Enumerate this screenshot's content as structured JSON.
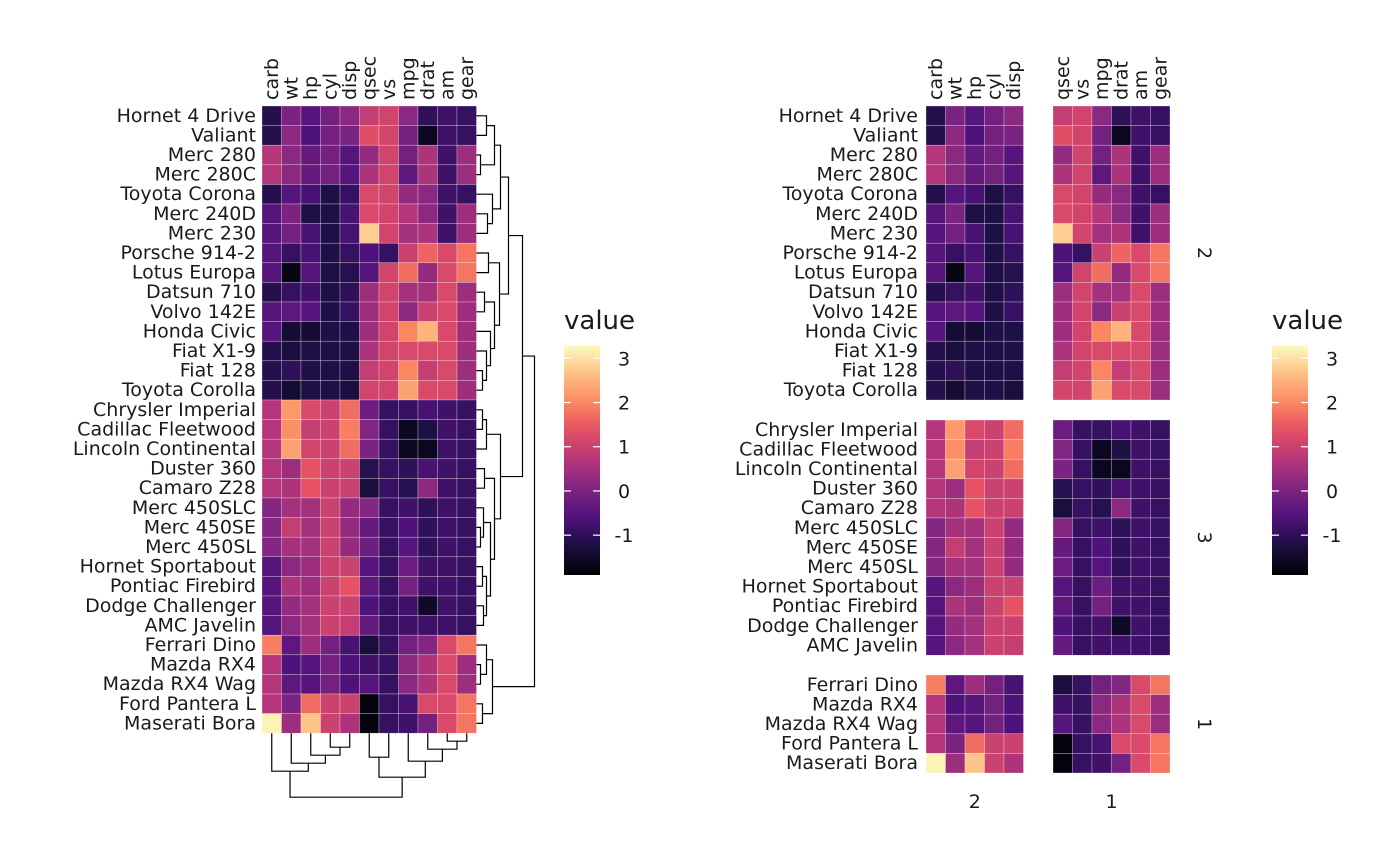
{
  "chart_data": [
    {
      "type": "heatmap",
      "title": "",
      "xlabel": "",
      "ylabel": "",
      "columns": [
        "carb",
        "wt",
        "hp",
        "cyl",
        "disp",
        "qsec",
        "vs",
        "mpg",
        "drat",
        "am",
        "gear"
      ],
      "rows": [
        "Hornet 4 Drive",
        "Valiant",
        "Merc 280",
        "Merc 280C",
        "Toyota Corona",
        "Merc 240D",
        "Merc 230",
        "Porsche 914-2",
        "Lotus Europa",
        "Datsun 710",
        "Volvo 142E",
        "Honda Civic",
        "Fiat X1-9",
        "Fiat 128",
        "Toyota Corolla",
        "Chrysler Imperial",
        "Cadillac Fleetwood",
        "Lincoln Continental",
        "Duster 360",
        "Camaro Z28",
        "Merc 450SLC",
        "Merc 450SE",
        "Merc 450SL",
        "Hornet Sportabout",
        "Pontiac Firebird",
        "Dodge Challenger",
        "AMC Javelin",
        "Ferrari Dino",
        "Mazda RX4",
        "Mazda RX4 Wag",
        "Ford Pantera L",
        "Maserati Bora"
      ],
      "dendrograms": [
        "rows",
        "columns"
      ],
      "legend": {
        "title": "value",
        "ticks": [
          3,
          2,
          1,
          0,
          -1
        ],
        "range": [
          -1.9,
          3.3
        ],
        "position": "right"
      }
    },
    {
      "type": "heatmap",
      "title": "",
      "column_groups": [
        {
          "label": "2",
          "columns": [
            "carb",
            "wt",
            "hp",
            "cyl",
            "disp"
          ]
        },
        {
          "label": "1",
          "columns": [
            "qsec",
            "vs",
            "mpg",
            "drat",
            "am",
            "gear"
          ]
        }
      ],
      "row_groups": [
        {
          "label": "2",
          "rows": [
            "Hornet 4 Drive",
            "Valiant",
            "Merc 280",
            "Merc 280C",
            "Toyota Corona",
            "Merc 240D",
            "Merc 230",
            "Porsche 914-2",
            "Lotus Europa",
            "Datsun 710",
            "Volvo 142E",
            "Honda Civic",
            "Fiat X1-9",
            "Fiat 128",
            "Toyota Corolla"
          ]
        },
        {
          "label": "3",
          "rows": [
            "Chrysler Imperial",
            "Cadillac Fleetwood",
            "Lincoln Continental",
            "Duster 360",
            "Camaro Z28",
            "Merc 450SLC",
            "Merc 450SE",
            "Merc 450SL",
            "Hornet Sportabout",
            "Pontiac Firebird",
            "Dodge Challenger",
            "AMC Javelin"
          ]
        },
        {
          "label": "1",
          "rows": [
            "Ferrari Dino",
            "Mazda RX4",
            "Mazda RX4 Wag",
            "Ford Pantera L",
            "Maserati Bora"
          ]
        }
      ],
      "legend": {
        "title": "value",
        "ticks": [
          3,
          2,
          1,
          0,
          -1
        ],
        "range": [
          -1.9,
          3.3
        ],
        "position": "right"
      }
    }
  ],
  "values": {
    "Hornet 4 Drive": [
      -1.12,
      -0.0,
      -0.5,
      -0.1,
      0.2,
      0.9,
      1.1,
      0.2,
      -1.0,
      -0.8,
      -0.9
    ],
    "Valiant": [
      -1.12,
      0.2,
      -0.6,
      -0.1,
      0.0,
      1.3,
      1.1,
      -0.1,
      -1.6,
      -0.8,
      -0.9
    ],
    "Merc 280": [
      0.7,
      0.2,
      -0.3,
      -0.1,
      -0.5,
      0.3,
      1.1,
      -0.1,
      0.6,
      -0.8,
      0.4
    ],
    "Merc 280C": [
      0.7,
      0.2,
      -0.3,
      -0.1,
      -0.5,
      0.6,
      1.1,
      -0.4,
      0.6,
      -0.8,
      0.4
    ],
    "Toyota Corona": [
      -1.12,
      -0.5,
      -0.7,
      -1.2,
      -0.9,
      1.2,
      1.1,
      0.3,
      0.2,
      -0.8,
      -0.9
    ],
    "Merc 240D": [
      -0.5,
      -0.0,
      -1.2,
      -1.2,
      -0.7,
      1.2,
      1.1,
      0.7,
      0.2,
      -0.8,
      0.4
    ],
    "Merc 230": [
      -0.5,
      -0.1,
      -0.7,
      -1.2,
      -0.7,
      2.8,
      1.1,
      0.5,
      0.6,
      -0.8,
      0.4
    ],
    "Porsche 914-2": [
      -0.5,
      -0.9,
      -0.7,
      -1.2,
      -0.9,
      -0.6,
      -0.9,
      1.0,
      1.6,
      1.2,
      1.8
    ],
    "Lotus Europa": [
      -0.5,
      -1.7,
      -0.5,
      -1.2,
      -1.1,
      -0.5,
      1.1,
      1.7,
      0.3,
      1.2,
      1.8
    ],
    "Datsun 710": [
      -1.12,
      -0.9,
      -0.8,
      -1.2,
      -1.0,
      0.4,
      1.1,
      0.5,
      0.5,
      1.2,
      0.4
    ],
    "Volvo 142E": [
      -0.5,
      -0.4,
      -0.5,
      -1.2,
      -0.9,
      0.4,
      1.1,
      0.2,
      1.0,
      1.2,
      0.4
    ],
    "Honda Civic": [
      -0.5,
      -1.4,
      -1.4,
      -1.2,
      -1.2,
      0.4,
      1.1,
      2.0,
      2.5,
      1.2,
      0.4
    ],
    "Fiat X1-9": [
      -1.12,
      -1.3,
      -1.2,
      -1.2,
      -1.2,
      0.6,
      1.1,
      1.2,
      1.2,
      1.2,
      0.4
    ],
    "Fiat 128": [
      -1.12,
      -1.0,
      -1.2,
      -1.2,
      -1.2,
      0.9,
      1.1,
      2.0,
      0.9,
      1.2,
      0.4
    ],
    "Toyota Corolla": [
      -1.12,
      -1.4,
      -1.2,
      -1.2,
      -1.3,
      1.1,
      1.1,
      2.3,
      1.2,
      1.2,
      0.4
    ],
    "Chrysler Imperial": [
      0.7,
      2.2,
      1.2,
      1.0,
      1.7,
      -0.2,
      -0.9,
      -0.9,
      -0.7,
      -0.8,
      -0.9
    ],
    "Cadillac Fleetwood": [
      0.7,
      2.1,
      0.9,
      1.0,
      1.9,
      0.1,
      -0.9,
      -1.6,
      -1.2,
      -0.8,
      -0.9
    ],
    "Lincoln Continental": [
      0.7,
      2.3,
      1.1,
      1.0,
      1.7,
      -0.0,
      -0.9,
      -1.6,
      -1.6,
      -0.8,
      -0.9
    ],
    "Duster 360": [
      0.7,
      0.4,
      1.4,
      1.0,
      1.0,
      -1.1,
      -0.9,
      -1.0,
      -0.7,
      -0.8,
      -0.9
    ],
    "Camaro Z28": [
      0.7,
      0.6,
      1.4,
      1.0,
      1.0,
      -1.3,
      -0.9,
      -1.1,
      0.2,
      -0.8,
      -0.9
    ],
    "Merc 450SLC": [
      0.1,
      0.5,
      0.5,
      1.0,
      0.3,
      0.1,
      -0.9,
      -0.8,
      -1.0,
      -0.8,
      -0.9
    ],
    "Merc 450SE": [
      0.1,
      0.9,
      0.5,
      1.0,
      0.3,
      -0.3,
      -0.9,
      -0.6,
      -1.0,
      -0.8,
      -0.9
    ],
    "Merc 450SL": [
      0.1,
      0.5,
      0.5,
      1.0,
      0.3,
      -0.2,
      -0.9,
      -0.5,
      -1.0,
      -0.8,
      -0.9
    ],
    "Hornet Sportabout": [
      -0.5,
      0.2,
      0.4,
      1.0,
      1.0,
      -0.5,
      -0.9,
      -0.2,
      -0.8,
      -0.8,
      -0.9
    ],
    "Pontiac Firebird": [
      -0.5,
      0.6,
      0.4,
      1.0,
      1.4,
      -0.4,
      -0.9,
      -0.1,
      -0.8,
      -0.8,
      -0.9
    ],
    "Dodge Challenger": [
      -0.5,
      0.3,
      0.5,
      1.0,
      1.0,
      -0.6,
      -0.9,
      -0.8,
      -1.5,
      -0.8,
      -0.9
    ],
    "AMC Javelin": [
      -0.5,
      0.2,
      0.5,
      1.0,
      0.9,
      -0.3,
      -0.9,
      -0.8,
      -0.8,
      -0.8,
      -0.9
    ],
    "Ferrari Dino": [
      1.9,
      -0.4,
      0.4,
      -0.1,
      -0.7,
      -1.3,
      -0.9,
      -0.1,
      0.1,
      1.2,
      1.8
    ],
    "Mazda RX4": [
      0.7,
      -0.6,
      -0.5,
      -0.1,
      -0.6,
      -0.8,
      -0.9,
      0.2,
      0.6,
      1.2,
      0.4
    ],
    "Mazda RX4 Wag": [
      0.7,
      -0.4,
      -0.5,
      -0.1,
      -0.6,
      -0.5,
      -0.9,
      0.2,
      0.6,
      1.2,
      0.4
    ],
    "Ford Pantera L": [
      0.7,
      -0.0,
      1.7,
      1.0,
      1.0,
      -1.8,
      -0.9,
      -0.7,
      1.2,
      1.2,
      1.8
    ],
    "Maserati Bora": [
      3.2,
      0.4,
      2.7,
      1.0,
      0.6,
      -1.8,
      -0.9,
      -0.8,
      -0.1,
      1.2,
      1.8
    ]
  }
}
